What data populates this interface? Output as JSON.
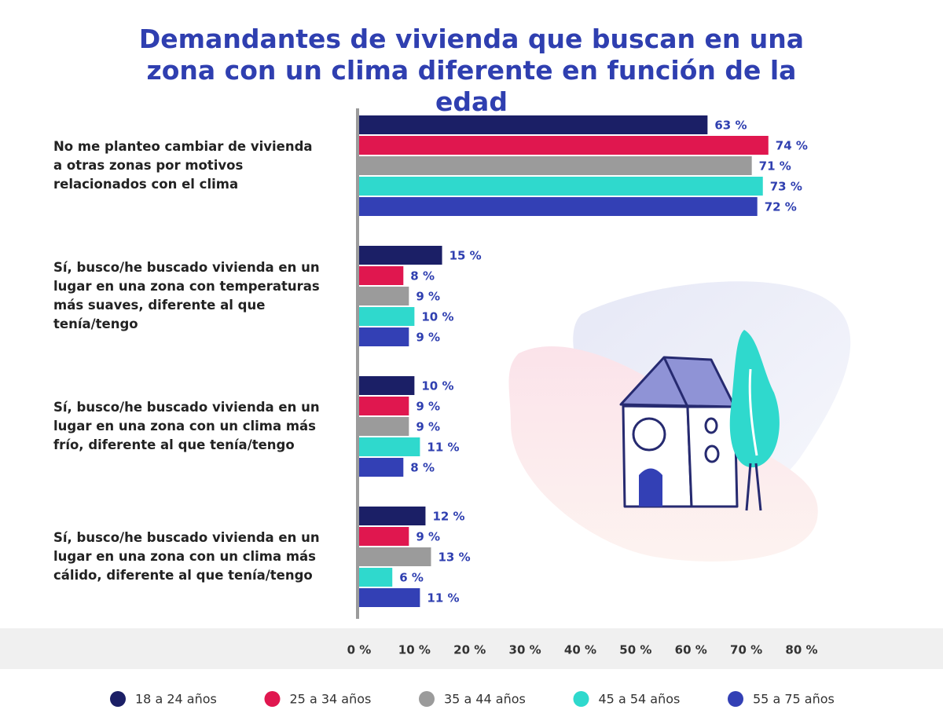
{
  "chart_data": {
    "type": "bar",
    "orientation": "horizontal",
    "title": "Demandantes de vivienda que buscan en una zona con un clima diferente en función de la edad",
    "categories": [
      "No me planteo cambiar de vivienda a otras zonas por motivos relacionados con el clima",
      "Sí, busco/he buscado vivienda en un lugar en una zona con temperaturas más suaves, diferente al que tenía/tengo",
      "Sí, busco/he buscado vivienda en un lugar en una zona con un clima más frío, diferente al que tenía/tengo",
      "Sí, busco/he buscado vivienda en un lugar en una zona con un clima más cálido, diferente al que tenía/tengo"
    ],
    "series": [
      {
        "name": "18 a 24 años",
        "color": "#1b1f66",
        "values": [
          63,
          15,
          10,
          12
        ],
        "value_labels": [
          "63 %",
          "15 %",
          "10 %",
          "12 %"
        ]
      },
      {
        "name": "25 a 34 años",
        "color": "#e0174f",
        "values": [
          74,
          8,
          9,
          9
        ],
        "value_labels": [
          "74 %",
          "8 %",
          "9 %",
          "9 %"
        ]
      },
      {
        "name": "35 a 44 años",
        "color": "#9b9b9b",
        "values": [
          71,
          9,
          9,
          13
        ],
        "value_labels": [
          "71 %",
          "9 %",
          "9 %",
          "13 %"
        ]
      },
      {
        "name": "45 a 54 años",
        "color": "#2fd9cd",
        "values": [
          73,
          10,
          11,
          6
        ],
        "value_labels": [
          "73 %",
          "10 %",
          "11 %",
          "6 %"
        ]
      },
      {
        "name": "55 a 75 años",
        "color": "#3340b5",
        "values": [
          72,
          9,
          8,
          11
        ],
        "value_labels": [
          "72 %",
          "9 %",
          "8 %",
          "11 %"
        ]
      }
    ],
    "xlim": [
      0,
      80
    ],
    "xticks": [
      {
        "value": 0,
        "label": "0 %"
      },
      {
        "value": 10,
        "label": "10 %"
      },
      {
        "value": 20,
        "label": "20 %"
      },
      {
        "value": 30,
        "label": "30 %"
      },
      {
        "value": 40,
        "label": "40 %"
      },
      {
        "value": 50,
        "label": "50 %"
      },
      {
        "value": 60,
        "label": "60 %"
      },
      {
        "value": 70,
        "label": "70 %"
      },
      {
        "value": 80,
        "label": "80 %"
      }
    ],
    "label_color": "#2f3fb0"
  }
}
